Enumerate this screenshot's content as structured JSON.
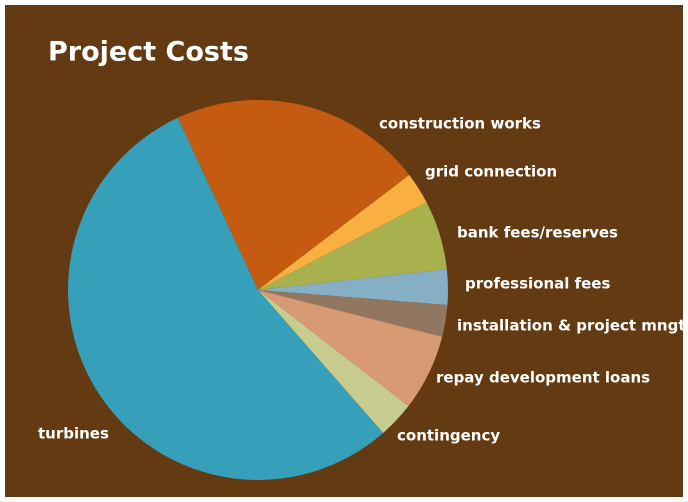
{
  "chart_data": {
    "type": "pie",
    "title": "Project Costs",
    "categories": [
      "construction works",
      "grid connection",
      "bank fees/reserves",
      "professional fees",
      "installation & project mngt",
      "repay development loans",
      "contingency",
      "turbines"
    ],
    "values": [
      21.6,
      2.7,
      5.9,
      3.0,
      2.7,
      6.5,
      3.1,
      54.5
    ],
    "colors": [
      "#c55a11",
      "#f9b040",
      "#a9b04e",
      "#86aec4",
      "#927760",
      "#d89a72",
      "#c8cc8e",
      "#369fba"
    ]
  }
}
